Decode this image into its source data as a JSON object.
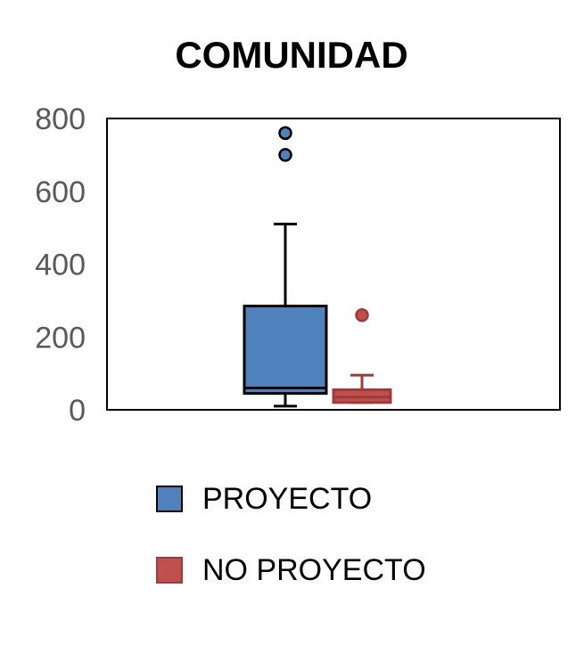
{
  "chart_data": {
    "type": "box",
    "title": "COMUNIDAD",
    "xlabel": "",
    "ylabel": "",
    "ylim": [
      0,
      800
    ],
    "yticks": [
      0,
      200,
      400,
      600,
      800
    ],
    "grid": false,
    "legend_position": "bottom",
    "series": [
      {
        "name": "PROYECTO",
        "color": "#4f81bd",
        "stroke": "#000000",
        "min": 10,
        "q1": 45,
        "median": 60,
        "q3": 285,
        "max": 510,
        "outliers": [
          700,
          760
        ]
      },
      {
        "name": "NO PROYECTO",
        "color": "#c0504d",
        "stroke": "#9e3b39",
        "min": 20,
        "q1": 20,
        "median": 35,
        "q3": 55,
        "max": 95,
        "outliers": [
          260
        ]
      }
    ]
  }
}
